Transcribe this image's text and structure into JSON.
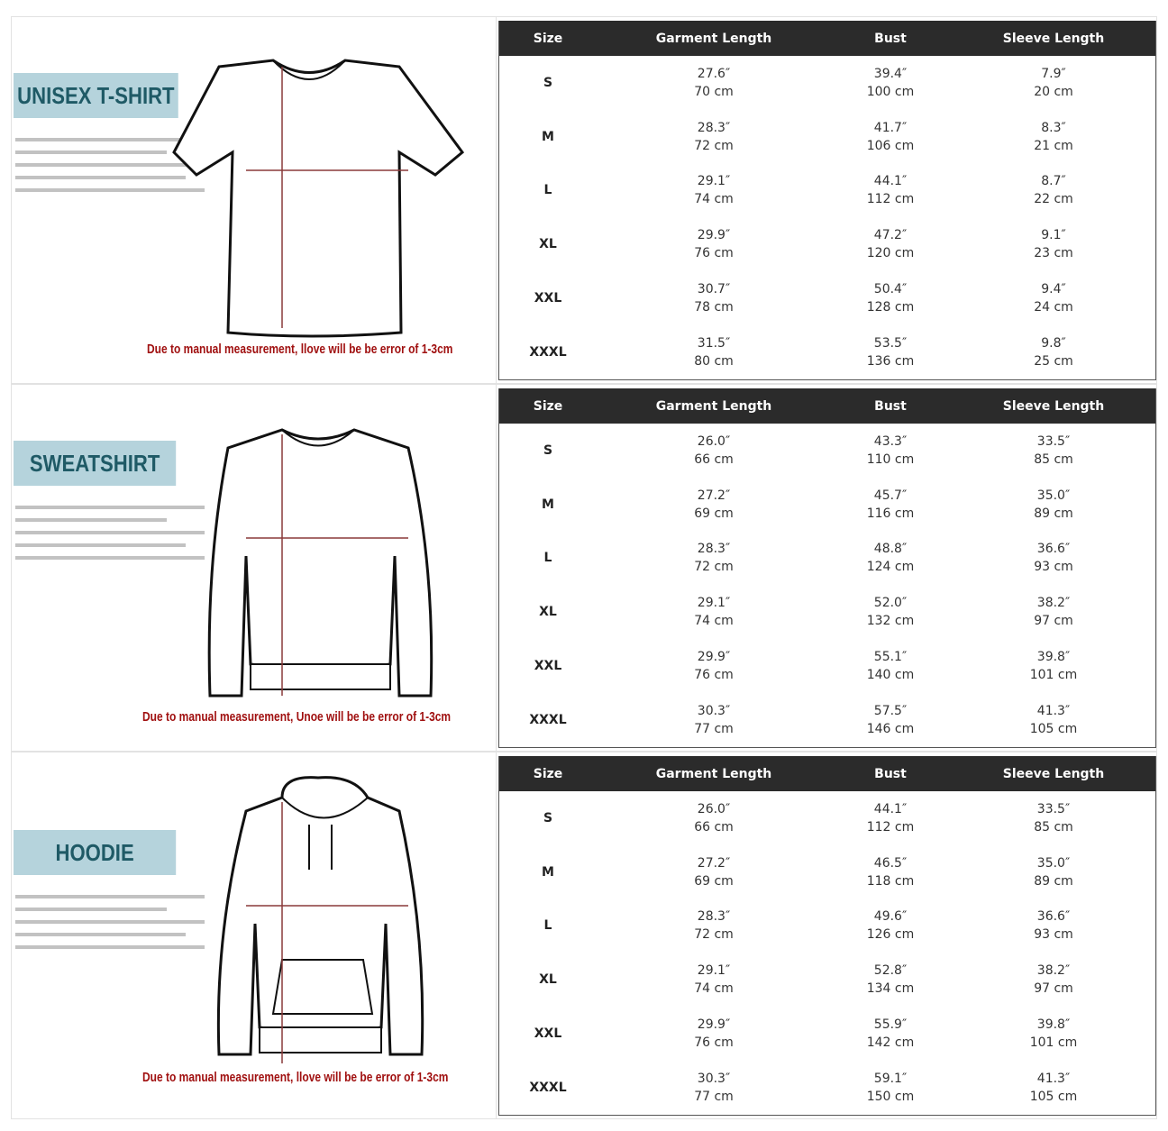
{
  "columns": [
    "Size",
    "Garment Length",
    "Bust",
    "Sleeve Length"
  ],
  "colors": {
    "header_bg": "#2b2b2b",
    "title_bg": "#b5d3dc",
    "title_text": "#1f5a66",
    "note_text": "#a01010"
  },
  "sections": [
    {
      "title": "UNISEX T-SHIRT",
      "garment": "t-shirt",
      "note": "Due to manual measurement, llove will be be error of 1-3cm",
      "rows": [
        [
          "S",
          "27.6″",
          "70 cm",
          "39.4″",
          "100 cm",
          "7.9″",
          "20 cm"
        ],
        [
          "M",
          "28.3″",
          "72 cm",
          "41.7″",
          "106 cm",
          "8.3″",
          "21 cm"
        ],
        [
          "L",
          "29.1″",
          "74 cm",
          "44.1″",
          "112 cm",
          "8.7″",
          "22 cm"
        ],
        [
          "XL",
          "29.9″",
          "76 cm",
          "47.2″",
          "120 cm",
          "9.1″",
          "23 cm"
        ],
        [
          "XXL",
          "30.7″",
          "78 cm",
          "50.4″",
          "128 cm",
          "9.4″",
          "24 cm"
        ],
        [
          "XXXL",
          "31.5″",
          "80 cm",
          "53.5″",
          "136 cm",
          "9.8″",
          "25 cm"
        ]
      ]
    },
    {
      "title": "SWEATSHIRT",
      "garment": "sweatshirt",
      "note": "Due to manual measurement, Unoe will be be error of 1-3cm",
      "rows": [
        [
          "S",
          "26.0″",
          "66 cm",
          "43.3″",
          "110 cm",
          "33.5″",
          "85 cm"
        ],
        [
          "M",
          "27.2″",
          "69 cm",
          "45.7″",
          "116 cm",
          "35.0″",
          "89 cm"
        ],
        [
          "L",
          "28.3″",
          "72 cm",
          "48.8″",
          "124 cm",
          "36.6″",
          "93 cm"
        ],
        [
          "XL",
          "29.1″",
          "74 cm",
          "52.0″",
          "132 cm",
          "38.2″",
          "97 cm"
        ],
        [
          "XXL",
          "29.9″",
          "76 cm",
          "55.1″",
          "140 cm",
          "39.8″",
          "101 cm"
        ],
        [
          "XXXL",
          "30.3″",
          "77 cm",
          "57.5″",
          "146 cm",
          "41.3″",
          "105 cm"
        ]
      ]
    },
    {
      "title": "HOODIE",
      "garment": "hoodie",
      "note": "Due to manual measurement, llove will be be error of 1-3cm",
      "rows": [
        [
          "S",
          "26.0″",
          "66 cm",
          "44.1″",
          "112 cm",
          "33.5″",
          "85 cm"
        ],
        [
          "M",
          "27.2″",
          "69 cm",
          "46.5″",
          "118 cm",
          "35.0″",
          "89 cm"
        ],
        [
          "L",
          "28.3″",
          "72 cm",
          "49.6″",
          "126 cm",
          "36.6″",
          "93 cm"
        ],
        [
          "XL",
          "29.1″",
          "74 cm",
          "52.8″",
          "134 cm",
          "38.2″",
          "97 cm"
        ],
        [
          "XXL",
          "29.9″",
          "76 cm",
          "55.9″",
          "142 cm",
          "39.8″",
          "101 cm"
        ],
        [
          "XXXL",
          "30.3″",
          "77 cm",
          "59.1″",
          "150 cm",
          "41.3″",
          "105 cm"
        ]
      ]
    }
  ]
}
